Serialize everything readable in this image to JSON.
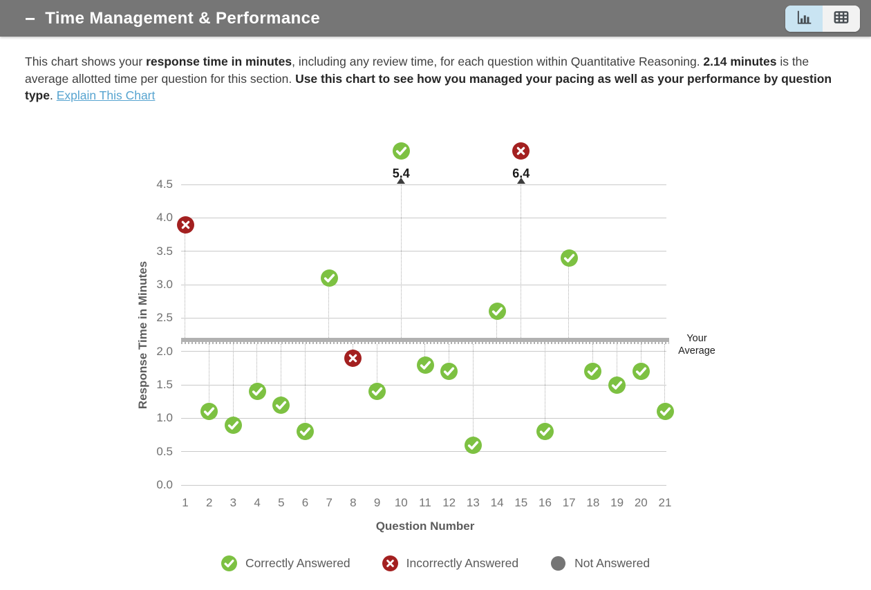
{
  "header": {
    "collapse_icon": "−",
    "title": "Time Management & Performance"
  },
  "description": {
    "segments": [
      {
        "text": "This chart shows your "
      },
      {
        "text": "response time in minutes"
      },
      {
        "text": ", including any review time, for each question within Quantitative Reasoning. "
      },
      {
        "text": "2.14 minutes"
      },
      {
        "text": " is the average allotted time per question for this section. "
      },
      {
        "text": "Use this chart to see how you managed your pacing as well as your performance by question type"
      },
      {
        "text": ". "
      }
    ],
    "link_label": "Explain This Chart"
  },
  "chart_data": {
    "type": "scatter",
    "xlabel": "Question Number",
    "ylabel": "Response Time in Minutes",
    "ylim": [
      0,
      4.5
    ],
    "ytick_step": 0.5,
    "grid": true,
    "average": {
      "value": 2.14,
      "label": "Your Average"
    },
    "points": [
      {
        "q": 1,
        "minutes": 3.9,
        "status": "incorrect"
      },
      {
        "q": 2,
        "minutes": 1.1,
        "status": "correct"
      },
      {
        "q": 3,
        "minutes": 0.9,
        "status": "correct"
      },
      {
        "q": 4,
        "minutes": 1.4,
        "status": "correct"
      },
      {
        "q": 5,
        "minutes": 1.2,
        "status": "correct"
      },
      {
        "q": 6,
        "minutes": 0.8,
        "status": "correct"
      },
      {
        "q": 7,
        "minutes": 3.1,
        "status": "correct"
      },
      {
        "q": 8,
        "minutes": 1.9,
        "status": "incorrect"
      },
      {
        "q": 9,
        "minutes": 1.4,
        "status": "correct"
      },
      {
        "q": 10,
        "minutes": 5.4,
        "status": "correct"
      },
      {
        "q": 11,
        "minutes": 1.8,
        "status": "correct"
      },
      {
        "q": 12,
        "minutes": 1.7,
        "status": "correct"
      },
      {
        "q": 13,
        "minutes": 0.6,
        "status": "correct"
      },
      {
        "q": 14,
        "minutes": 2.6,
        "status": "correct"
      },
      {
        "q": 15,
        "minutes": 6.4,
        "status": "incorrect"
      },
      {
        "q": 16,
        "minutes": 0.8,
        "status": "correct"
      },
      {
        "q": 17,
        "minutes": 3.4,
        "status": "correct"
      },
      {
        "q": 18,
        "minutes": 1.7,
        "status": "correct"
      },
      {
        "q": 19,
        "minutes": 1.5,
        "status": "correct"
      },
      {
        "q": 20,
        "minutes": 1.7,
        "status": "correct"
      },
      {
        "q": 21,
        "minutes": 1.1,
        "status": "correct"
      }
    ],
    "legend": [
      {
        "status": "correct",
        "label": "Correctly Answered"
      },
      {
        "status": "incorrect",
        "label": "Incorrectly Answered"
      },
      {
        "status": "not_answered",
        "label": "Not Answered"
      }
    ],
    "colors": {
      "correct": "#7dc142",
      "incorrect": "#a32020",
      "not_answered": "#757575",
      "average_line": "#b1b1b1",
      "grid": "#c9c9c9",
      "link": "#57a4d0",
      "header_bg": "#767676",
      "toggle_selected_bg": "#c9e4f2"
    }
  }
}
